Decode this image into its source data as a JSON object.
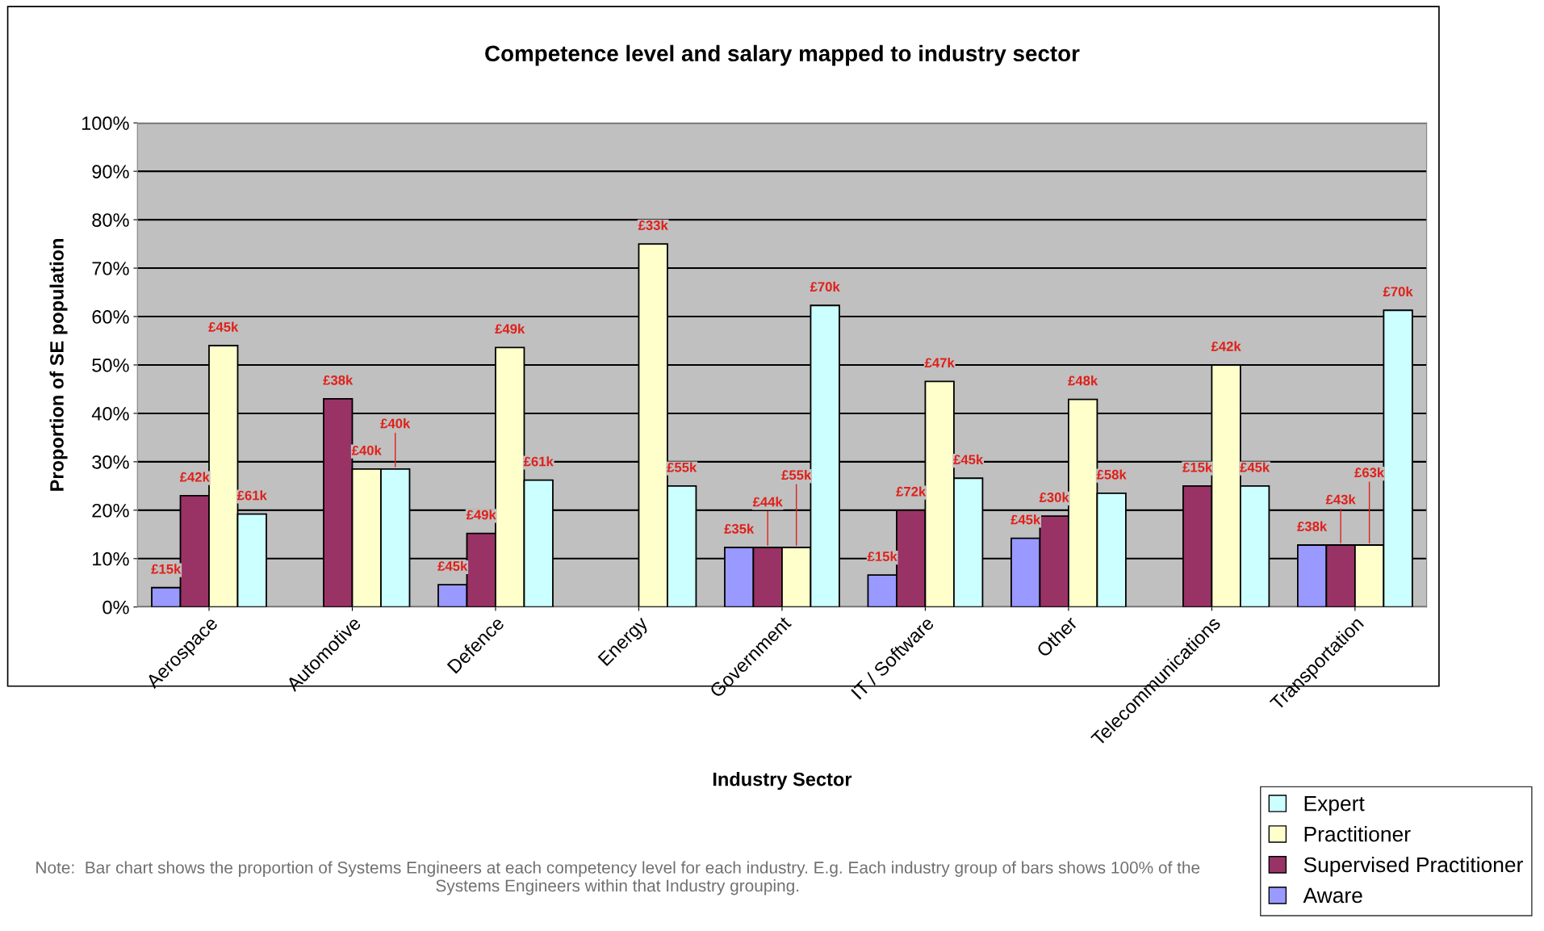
{
  "chart_data": {
    "type": "bar",
    "title": "Competence level and salary mapped to industry sector",
    "xlabel": "Industry Sector",
    "ylabel": "Proportion of SE population",
    "categories": [
      "Aerospace",
      "Automotive",
      "Defence",
      "Energy",
      "Government",
      "IT / Software",
      "Other",
      "Telecommunications",
      "Transportation"
    ],
    "series": [
      {
        "name": "Aware",
        "color": "#9999ff",
        "values": [
          4,
          null,
          4.6,
          null,
          12.3,
          6.6,
          14.2,
          null,
          12.8
        ]
      },
      {
        "name": "Supervised Practitioner",
        "color": "#993366",
        "values": [
          23,
          43,
          15.2,
          null,
          12.3,
          20,
          18.8,
          25,
          12.8
        ]
      },
      {
        "name": "Practitioner",
        "color": "#ffffcc",
        "values": [
          54,
          28.5,
          53.6,
          75,
          12.3,
          46.6,
          42.9,
          50,
          12.8
        ]
      },
      {
        "name": "Expert",
        "color": "#ccffff",
        "values": [
          19.2,
          28.5,
          26.2,
          25,
          62.3,
          26.6,
          23.5,
          25,
          61.3
        ]
      }
    ],
    "ylim": [
      0,
      100
    ],
    "yticks": [
      {
        "value": 0,
        "label": "0%"
      },
      {
        "value": 10,
        "label": "10%"
      },
      {
        "value": 20,
        "label": "20%"
      },
      {
        "value": 30,
        "label": "30%"
      },
      {
        "value": 40,
        "label": "40%"
      },
      {
        "value": 50,
        "label": "50%"
      },
      {
        "value": 60,
        "label": "60%"
      },
      {
        "value": 70,
        "label": "70%"
      },
      {
        "value": 80,
        "label": "80%"
      },
      {
        "value": 90,
        "label": "90%"
      },
      {
        "value": 100,
        "label": "100%"
      }
    ],
    "grid": "y",
    "legend": "bottom right",
    "annotations": [
      "£15k",
      "£42k",
      "£45k",
      "£61k",
      "£38k",
      "£40k",
      {
        "text": "£40k",
        "y": 28.5
      },
      "£45k",
      "£49k",
      "£49k",
      "£61k",
      "£33k",
      "£55k",
      "£35k",
      {
        "text": "£44k",
        "y": 12.3
      },
      {
        "text": "£55k",
        "y": 12.3
      },
      "£70k",
      "£15k",
      "£72k",
      "£47k",
      "£45k",
      "£45k",
      "£30k",
      "£48k",
      "£58k",
      "£15k",
      "£42k",
      "£45k",
      "£38k",
      {
        "text": "£43k",
        "y": 12.8
      },
      {
        "text": "£63k",
        "y": 12.8
      },
      "£70k",
      "Note:  Bar chart shows the proportion of Systems Engineers at each competency level for each industry. E.g. Each industry group of bars shows 100% of the Systems Engineers within that Industry grouping."
    ]
  }
}
